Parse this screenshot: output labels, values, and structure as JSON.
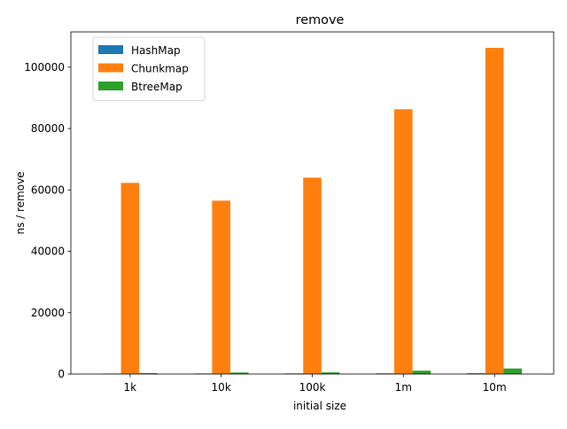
{
  "chart_data": {
    "type": "bar",
    "title": "remove",
    "xlabel": "initial size",
    "ylabel": "ns / remove",
    "categories": [
      "1k",
      "10k",
      "100k",
      "1m",
      "10m"
    ],
    "ylim": [
      0,
      111500
    ],
    "yticks": [
      0,
      20000,
      40000,
      60000,
      80000,
      100000
    ],
    "grid": false,
    "legend_position": "top-left",
    "series": [
      {
        "name": "HashMap",
        "color": "#1f77b4",
        "values": [
          150,
          180,
          200,
          220,
          250
        ]
      },
      {
        "name": "Chunkmap",
        "color": "#ff7f0e",
        "values": [
          62300,
          56500,
          64000,
          86300,
          106300
        ]
      },
      {
        "name": "BtreeMap",
        "color": "#2ca02c",
        "values": [
          300,
          500,
          550,
          1100,
          1800
        ]
      }
    ]
  }
}
